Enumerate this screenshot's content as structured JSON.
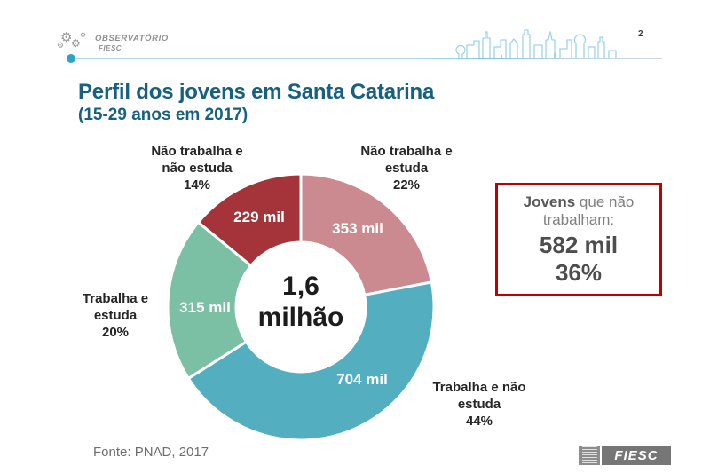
{
  "page": {
    "background": "#ffffff",
    "page_number": "2"
  },
  "header": {
    "logo": {
      "brand": "OBSERVATÓRIO",
      "sub": "FIESC",
      "mark_icon": "gear-cluster-icon",
      "color": "#8f9092"
    },
    "art_icon": "city-skyline-graphic",
    "accent_line_color": "#aedcee",
    "accent_dot_color": "#2da3c9"
  },
  "title": {
    "main": "Perfil dos jovens em Santa Catarina",
    "subtitle": "(15-29 anos em 2017)",
    "color": "#17607f"
  },
  "chart_data": {
    "type": "pie",
    "style": "donut",
    "title": "Perfil dos jovens em Santa Catarina (15-29 anos em 2017)",
    "center_label": "1,6\nmilhão",
    "total_label": "1,6 milhão",
    "start_angle_deg": 0,
    "direction": "clockwise",
    "legend_position": "around",
    "segments": [
      {
        "label": "Não trabalha e\nestuda",
        "pct": 22,
        "pct_label": "22%",
        "value": "353 mil",
        "color": "#ca8a8f"
      },
      {
        "label": "Trabalha e não\nestuda",
        "pct": 44,
        "pct_label": "44%",
        "value": "704 mil",
        "color": "#53afc0"
      },
      {
        "label": "Trabalha e\nestuda",
        "pct": 20,
        "pct_label": "20%",
        "value": "315 mil",
        "color": "#7bbfa4"
      },
      {
        "label": "Não trabalha e\nnão estuda",
        "pct": 14,
        "pct_label": "14%",
        "value": "229 mil",
        "color": "#a43439"
      }
    ]
  },
  "callout": {
    "lead": "Jovens",
    "rest": " que não trabalham:",
    "value": "582 mil",
    "pct": "36%",
    "border_color": "#c00000"
  },
  "footer": {
    "source": "Fonte: PNAD, 2017",
    "fiesc_logo_label": "FIESC"
  }
}
